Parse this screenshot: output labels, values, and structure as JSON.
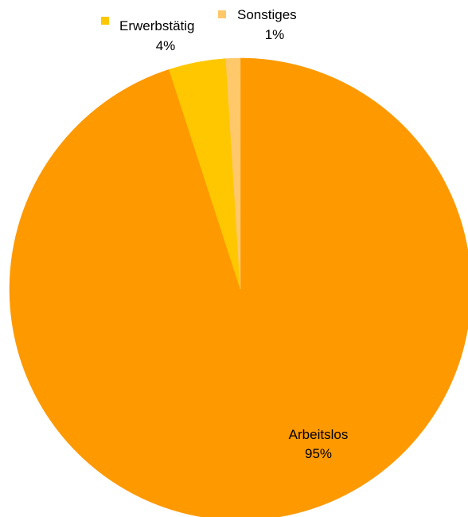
{
  "chart_data": {
    "type": "pie",
    "title": "",
    "slices": [
      {
        "label": "Arbeitslos",
        "value": 95,
        "value_label": "95%",
        "color": "#FF9900"
      },
      {
        "label": "Erwerbstätig",
        "value": 4,
        "value_label": "4%",
        "color": "#FFC700"
      },
      {
        "label": "Sonstiges",
        "value": 1,
        "value_label": "1%",
        "color": "#FFC86B"
      }
    ],
    "start_angle_deg": 0,
    "direction": "clockwise",
    "legend": "labels-with-color-markers"
  }
}
